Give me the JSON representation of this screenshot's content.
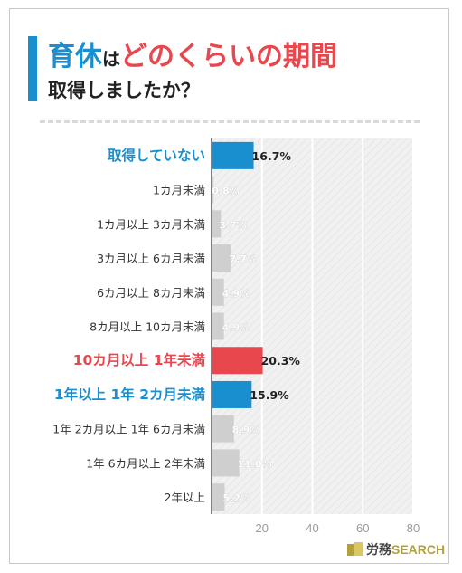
{
  "title": {
    "part1": "育休",
    "part2": "は",
    "part3": "どのくらいの期間",
    "line2": "取得しましたか？"
  },
  "colors": {
    "blue": "#1a8fd0",
    "red": "#e8474d",
    "gray": "#cfcfcf",
    "plot_bg": "#f1f1f1"
  },
  "chart_data": {
    "type": "bar",
    "orientation": "horizontal",
    "categories": [
      "取得していない",
      "1カ月未満",
      "1カ月以上 3カ月未満",
      "3カ月以上 6カ月未満",
      "6カ月以上 8カ月未満",
      "8カ月以上 10カ月未満",
      "10カ月以上 1年未満",
      "1年以上 1年 2カ月未満",
      "1年 2カ月以上 1年 6カ月未満",
      "1年 6カ月以上 2年未満",
      "2年以上"
    ],
    "values": [
      16.7,
      0.8,
      3.7,
      7.7,
      4.9,
      4.9,
      20.3,
      15.9,
      8.9,
      11.0,
      5.2
    ],
    "value_labels": [
      "16.7%",
      "0.8%",
      "3.7%",
      "7.7%",
      "4.9%",
      "4.9%",
      "20.3%",
      "15.9%",
      "8.9%",
      "11.0%",
      "5.2%"
    ],
    "bar_colors": [
      "blue",
      "gray",
      "gray",
      "gray",
      "gray",
      "gray",
      "red",
      "blue",
      "gray",
      "gray",
      "gray"
    ],
    "xlim": [
      0,
      80
    ],
    "xticks": [
      20,
      40,
      60,
      80
    ],
    "grid": true
  },
  "brand": {
    "mark": "労務",
    "name": "SEARCH"
  }
}
